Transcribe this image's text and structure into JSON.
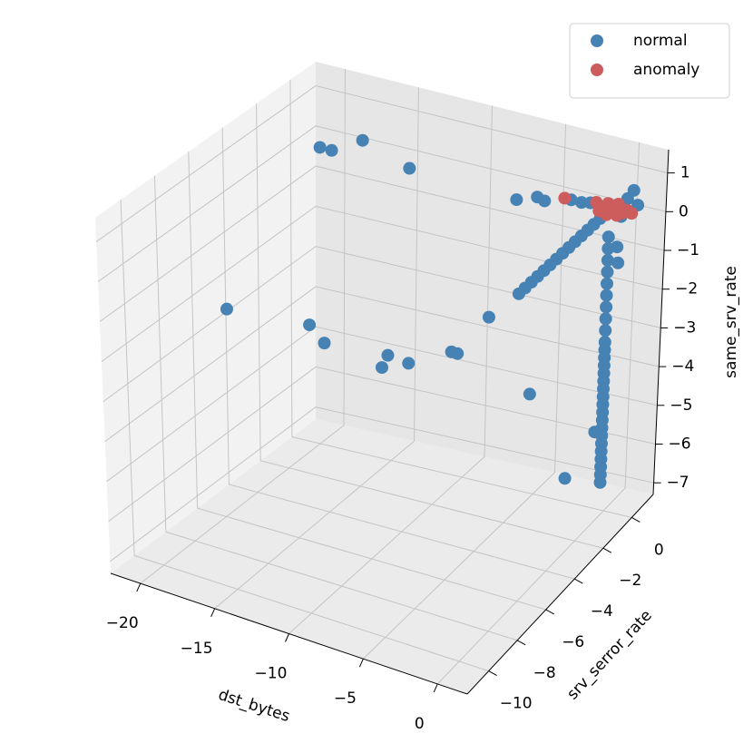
{
  "chart_data": {
    "type": "scatter3d",
    "xlabel": "dst_bytes",
    "ylabel": "srv_serror_rate",
    "zlabel": "same_srv_rate",
    "xlim": [
      -22,
      2
    ],
    "ylim": [
      -11.5,
      1.5
    ],
    "zlim": [
      -7.3,
      1.6
    ],
    "xticks": [
      {
        "value": -20,
        "label": "−20"
      },
      {
        "value": -15,
        "label": "−15"
      },
      {
        "value": -10,
        "label": "−10"
      },
      {
        "value": -5,
        "label": "−5"
      },
      0
    ],
    "yticks": [
      {
        "value": -10,
        "label": "−10"
      },
      {
        "value": -8,
        "label": "−8"
      },
      {
        "value": -6,
        "label": "−6"
      },
      {
        "value": -4,
        "label": "−4"
      },
      {
        "value": -2,
        "label": "−2"
      },
      0
    ],
    "zticks": [
      {
        "value": -7,
        "label": "−7"
      },
      {
        "value": -6,
        "label": "−6"
      },
      {
        "value": -5,
        "label": "−5"
      },
      {
        "value": -4,
        "label": "−4"
      },
      {
        "value": -3,
        "label": "−3"
      },
      {
        "value": -2,
        "label": "−2"
      },
      {
        "value": -1,
        "label": "−1"
      },
      0,
      1
    ],
    "grid": true,
    "legend": "upper right",
    "series": [
      {
        "name": "normal",
        "color": "#4682b4",
        "x": [
          -20,
          -19.2,
          -17.1,
          -13.9,
          -20.8,
          -15.2,
          -14.2,
          -10.3,
          -9.9,
          -8.5,
          -5.6,
          -5.2,
          -3.1,
          -0.3,
          0.2,
          -6.6,
          -5.2,
          -4.7,
          -2.9,
          -2.2,
          -1.6,
          1.3,
          1.6,
          0.9,
          0.5,
          -0.5,
          -0.5,
          -0.5,
          -0.5,
          -0.5,
          -0.5,
          -0.5,
          -0.5,
          -0.5,
          -0.5,
          -0.5,
          -0.5,
          -0.5,
          -0.5,
          -0.3,
          -0.3,
          -0.3,
          -0.3,
          -0.3,
          -0.3,
          -0.3,
          -0.3,
          -0.3,
          -0.3,
          -0.3,
          -0.3,
          -0.3,
          -0.3,
          -0.3,
          -0.3,
          -0.3,
          -0.3,
          -0.3,
          -0.3,
          -0.3,
          -0.3,
          -0.3,
          -0.3,
          -0.3,
          -0.3,
          -0.3,
          -0.3,
          -0.8,
          0.3,
          0.4
        ],
        "y": [
          0,
          0,
          0,
          0,
          -5,
          -5,
          -5,
          -5,
          -5,
          -5,
          -5,
          -5,
          -5,
          -5,
          -3,
          0,
          0,
          0,
          0,
          0,
          0,
          0,
          0,
          0,
          0,
          -5.6,
          -5.2,
          -4.8,
          -4.4,
          -4.0,
          -3.6,
          -3.2,
          -2.8,
          -2.4,
          -2.0,
          -1.6,
          -1.2,
          -0.8,
          -0.4,
          0,
          0,
          0,
          0,
          0,
          0,
          0,
          0,
          0,
          0,
          0,
          0,
          0,
          0,
          0,
          0,
          0,
          0,
          0,
          0,
          0,
          0,
          0,
          0,
          0,
          0,
          0,
          0,
          0,
          0,
          0
        ],
        "z": [
          0.1,
          0.1,
          0.55,
          0.15,
          -2.5,
          -2.3,
          -2.65,
          -2.85,
          -2.5,
          -2.55,
          -1.95,
          -1.95,
          -0.8,
          -2.45,
          -5.3,
          0.05,
          0.25,
          0.2,
          0.4,
          0.4,
          0.45,
          1.05,
          0.7,
          0.8,
          0.3,
          0.3,
          0.3,
          0.3,
          0.3,
          0.3,
          0.3,
          0.3,
          0.3,
          0.3,
          0.3,
          0.3,
          0.3,
          0.3,
          0.3,
          -0.3,
          -0.6,
          -0.9,
          -1.2,
          -1.5,
          -1.8,
          -2.1,
          -2.4,
          -2.7,
          -3.0,
          -3.2,
          -3.4,
          -3.6,
          -3.8,
          -4.0,
          -4.2,
          -4.4,
          -4.6,
          -4.8,
          -5.0,
          -5.2,
          -5.4,
          -5.6,
          -5.8,
          -6.0,
          -6.2,
          -6.4,
          -6.6,
          -5.35,
          -0.5,
          -0.9
        ]
      },
      {
        "name": "anomaly",
        "color": "#cd5c5c",
        "x": [
          -3.35,
          -1.2,
          -0.8,
          -0.4,
          0,
          0.3,
          0.6,
          0.9,
          1.2,
          -0.5,
          0.2,
          -1
        ],
        "y": [
          0,
          0,
          0,
          0,
          0,
          0,
          0,
          0,
          0,
          0,
          0,
          0
        ],
        "z": [
          0.4,
          0.5,
          0.35,
          0.55,
          0.45,
          0.6,
          0.4,
          0.5,
          0.45,
          0.25,
          0.3,
          0.3
        ]
      }
    ]
  }
}
